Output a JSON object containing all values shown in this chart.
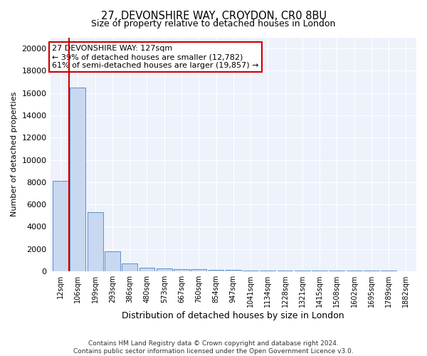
{
  "title_line1": "27, DEVONSHIRE WAY, CROYDON, CR0 8BU",
  "title_line2": "Size of property relative to detached houses in London",
  "xlabel": "Distribution of detached houses by size in London",
  "ylabel": "Number of detached properties",
  "bin_labels": [
    "12sqm",
    "106sqm",
    "199sqm",
    "293sqm",
    "386sqm",
    "480sqm",
    "573sqm",
    "667sqm",
    "760sqm",
    "854sqm",
    "947sqm",
    "1041sqm",
    "1134sqm",
    "1228sqm",
    "1321sqm",
    "1415sqm",
    "1508sqm",
    "1602sqm",
    "1695sqm",
    "1789sqm",
    "1882sqm"
  ],
  "bar_heights": [
    8100,
    16500,
    5300,
    1800,
    700,
    350,
    250,
    200,
    200,
    150,
    120,
    100,
    90,
    80,
    70,
    60,
    55,
    50,
    45,
    40,
    35
  ],
  "bar_color": "#c8d8f0",
  "bar_edge_color": "#6090c8",
  "annotation_text": "27 DEVONSHIRE WAY: 127sqm\n← 39% of detached houses are smaller (12,782)\n61% of semi-detached houses are larger (19,857) →",
  "annotation_box_edge_color": "#cc0000",
  "ylim": [
    0,
    21000
  ],
  "yticks": [
    0,
    2000,
    4000,
    6000,
    8000,
    10000,
    12000,
    14000,
    16000,
    18000,
    20000
  ],
  "footer_line1": "Contains HM Land Registry data © Crown copyright and database right 2024.",
  "footer_line2": "Contains public sector information licensed under the Open Government Licence v3.0.",
  "bg_color": "#ffffff",
  "plot_bg_color": "#edf2fb",
  "grid_color": "#ffffff",
  "vertical_line_color": "#cc0000"
}
